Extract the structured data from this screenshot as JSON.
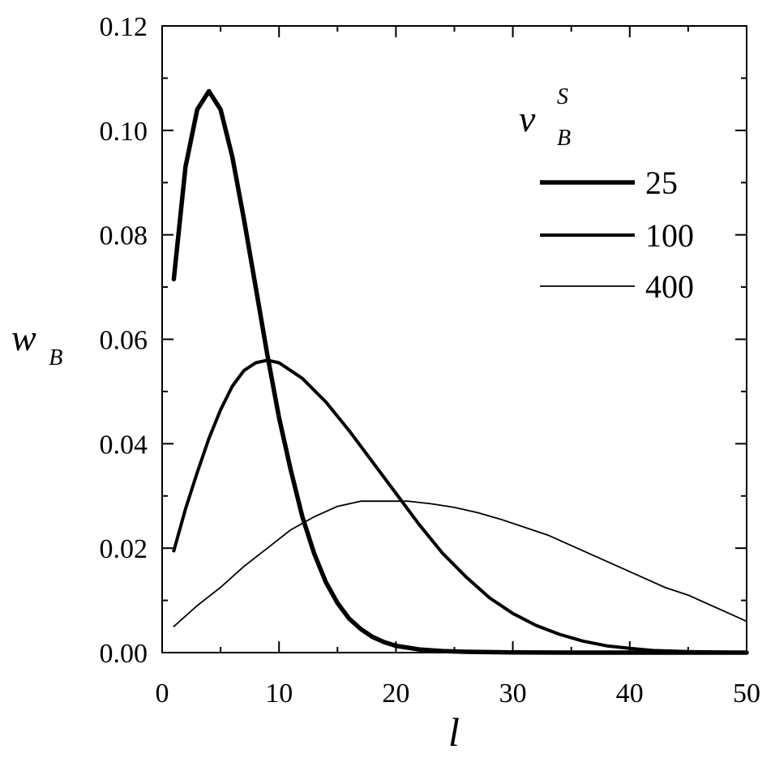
{
  "chart_data": {
    "type": "line",
    "xlabel": "l",
    "ylabel": {
      "main": "w",
      "sub": "B"
    },
    "xlim": [
      0,
      50
    ],
    "ylim": [
      0,
      0.12
    ],
    "x_ticks": [
      "0",
      "10",
      "20",
      "30",
      "40",
      "50"
    ],
    "y_ticks": [
      "0.00",
      "0.02",
      "0.04",
      "0.06",
      "0.08",
      "0.10",
      "0.12"
    ],
    "grid": false,
    "legend": {
      "placement": "top-right",
      "title": {
        "main": "v",
        "sub": "B",
        "sup": "S"
      }
    },
    "series": [
      {
        "name": "25",
        "weight": "thick",
        "x": [
          1,
          2,
          3,
          4,
          5,
          6,
          7,
          8,
          9,
          10,
          11,
          12,
          13,
          14,
          15,
          16,
          17,
          18,
          19,
          20,
          22,
          24,
          26,
          28,
          30,
          35,
          40,
          45,
          50
        ],
        "y": [
          0.0715,
          0.093,
          0.104,
          0.1075,
          0.104,
          0.095,
          0.083,
          0.07,
          0.057,
          0.045,
          0.035,
          0.026,
          0.019,
          0.0135,
          0.0095,
          0.0065,
          0.0045,
          0.003,
          0.002,
          0.0013,
          0.0006,
          0.0003,
          0.00015,
          0.0001,
          5e-05,
          0,
          0,
          0,
          0
        ]
      },
      {
        "name": "100",
        "weight": "medium",
        "x": [
          1,
          2,
          3,
          4,
          5,
          6,
          7,
          8,
          9,
          10,
          11,
          12,
          14,
          16,
          18,
          20,
          22,
          24,
          26,
          28,
          30,
          32,
          34,
          36,
          38,
          40,
          42,
          45,
          50
        ],
        "y": [
          0.0195,
          0.0275,
          0.0345,
          0.041,
          0.0465,
          0.051,
          0.054,
          0.0555,
          0.056,
          0.0555,
          0.054,
          0.0525,
          0.048,
          0.0425,
          0.0365,
          0.0305,
          0.0245,
          0.019,
          0.0145,
          0.0105,
          0.0075,
          0.0052,
          0.0035,
          0.0022,
          0.0013,
          0.0008,
          0.0004,
          0.0002,
          5e-05
        ]
      },
      {
        "name": "400",
        "weight": "thin",
        "x": [
          1,
          3,
          5,
          7,
          9,
          11,
          13,
          15,
          17,
          19,
          21,
          23,
          25,
          27,
          29,
          31,
          33,
          35,
          37,
          39,
          41,
          43,
          45,
          47,
          49,
          50
        ],
        "y": [
          0.005,
          0.009,
          0.0125,
          0.0165,
          0.02,
          0.0235,
          0.026,
          0.028,
          0.029,
          0.029,
          0.029,
          0.0285,
          0.0278,
          0.0268,
          0.0255,
          0.024,
          0.0225,
          0.0205,
          0.0185,
          0.0165,
          0.0145,
          0.0125,
          0.011,
          0.009,
          0.007,
          0.006
        ]
      }
    ]
  }
}
